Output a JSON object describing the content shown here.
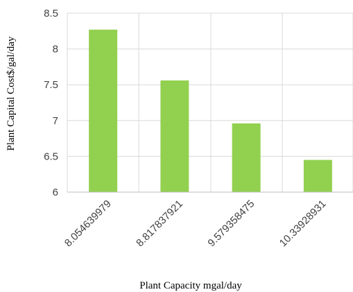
{
  "chart_data": {
    "type": "bar",
    "title": "",
    "xlabel": "Plant Capacity mgal/day",
    "ylabel": "Plant Capital Cost$/gal/day",
    "categories": [
      "8.054639979",
      "8.817837921",
      "9.579358475",
      "10.33928931"
    ],
    "series": [
      {
        "values": [
          8.27,
          7.56,
          6.96,
          6.45
        ]
      }
    ],
    "ylim": [
      6,
      8.5
    ],
    "yticks": [
      "6",
      "6.5",
      "7",
      "7.5",
      "8",
      "8.5"
    ],
    "grid": true,
    "legend": "none",
    "bar_color": "#92d050",
    "grid_color": "#d9d9d9",
    "axis_color": "#bfbfbf"
  }
}
